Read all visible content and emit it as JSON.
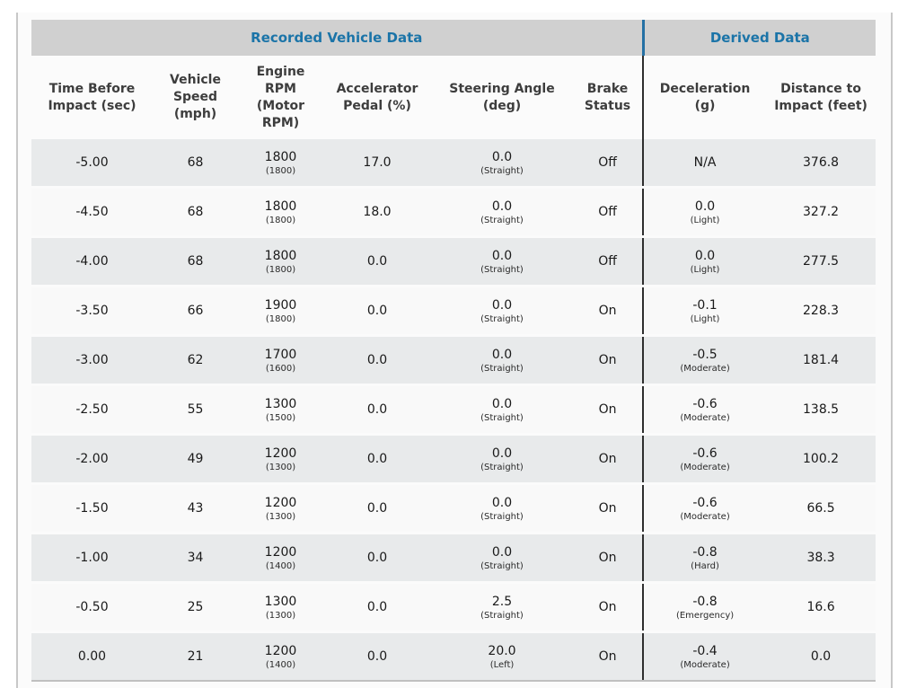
{
  "colors": {
    "accent_blue_text": "#1b74a8",
    "accent_blue_divider": "#2470a4",
    "group_header_bg": "#d0d0d0",
    "row_odd_bg": "#e8eaeb",
    "row_even_bg": "#f9f9f9",
    "dark_divider": "#2e2e2e",
    "panel_border": "#c8c8c8"
  },
  "table": {
    "group_headers": [
      {
        "label": "Recorded Vehicle Data",
        "colspan": "6"
      },
      {
        "label": "Derived Data",
        "colspan": "2"
      }
    ],
    "columns": [
      {
        "key": "time",
        "label": "Time Before Impact (sec)"
      },
      {
        "key": "speed",
        "label": "Vehicle Speed (mph)"
      },
      {
        "key": "rpm",
        "label": "Engine RPM (Motor RPM)",
        "sub_key": "rpm_sub"
      },
      {
        "key": "accel",
        "label": "Accelerator Pedal (%)"
      },
      {
        "key": "steer",
        "label": "Steering Angle (deg)",
        "sub_key": "steer_sub"
      },
      {
        "key": "brake",
        "label": "Brake Status"
      },
      {
        "key": "decel",
        "label": "Deceleration (g)",
        "sub_key": "decel_sub",
        "divider": true
      },
      {
        "key": "dist",
        "label": "Distance to Impact (feet)"
      }
    ],
    "rows": [
      {
        "time": "-5.00",
        "speed": "68",
        "rpm": "1800",
        "rpm_sub": "(1800)",
        "accel": "17.0",
        "steer": "0.0",
        "steer_sub": "(Straight)",
        "brake": "Off",
        "decel": "N/A",
        "decel_sub": "",
        "dist": "376.8"
      },
      {
        "time": "-4.50",
        "speed": "68",
        "rpm": "1800",
        "rpm_sub": "(1800)",
        "accel": "18.0",
        "steer": "0.0",
        "steer_sub": "(Straight)",
        "brake": "Off",
        "decel": "0.0",
        "decel_sub": "(Light)",
        "dist": "327.2"
      },
      {
        "time": "-4.00",
        "speed": "68",
        "rpm": "1800",
        "rpm_sub": "(1800)",
        "accel": "0.0",
        "steer": "0.0",
        "steer_sub": "(Straight)",
        "brake": "Off",
        "decel": "0.0",
        "decel_sub": "(Light)",
        "dist": "277.5"
      },
      {
        "time": "-3.50",
        "speed": "66",
        "rpm": "1900",
        "rpm_sub": "(1800)",
        "accel": "0.0",
        "steer": "0.0",
        "steer_sub": "(Straight)",
        "brake": "On",
        "decel": "-0.1",
        "decel_sub": "(Light)",
        "dist": "228.3"
      },
      {
        "time": "-3.00",
        "speed": "62",
        "rpm": "1700",
        "rpm_sub": "(1600)",
        "accel": "0.0",
        "steer": "0.0",
        "steer_sub": "(Straight)",
        "brake": "On",
        "decel": "-0.5",
        "decel_sub": "(Moderate)",
        "dist": "181.4"
      },
      {
        "time": "-2.50",
        "speed": "55",
        "rpm": "1300",
        "rpm_sub": "(1500)",
        "accel": "0.0",
        "steer": "0.0",
        "steer_sub": "(Straight)",
        "brake": "On",
        "decel": "-0.6",
        "decel_sub": "(Moderate)",
        "dist": "138.5"
      },
      {
        "time": "-2.00",
        "speed": "49",
        "rpm": "1200",
        "rpm_sub": "(1300)",
        "accel": "0.0",
        "steer": "0.0",
        "steer_sub": "(Straight)",
        "brake": "On",
        "decel": "-0.6",
        "decel_sub": "(Moderate)",
        "dist": "100.2"
      },
      {
        "time": "-1.50",
        "speed": "43",
        "rpm": "1200",
        "rpm_sub": "(1300)",
        "accel": "0.0",
        "steer": "0.0",
        "steer_sub": "(Straight)",
        "brake": "On",
        "decel": "-0.6",
        "decel_sub": "(Moderate)",
        "dist": "66.5"
      },
      {
        "time": "-1.00",
        "speed": "34",
        "rpm": "1200",
        "rpm_sub": "(1400)",
        "accel": "0.0",
        "steer": "0.0",
        "steer_sub": "(Straight)",
        "brake": "On",
        "decel": "-0.8",
        "decel_sub": "(Hard)",
        "dist": "38.3"
      },
      {
        "time": "-0.50",
        "speed": "25",
        "rpm": "1300",
        "rpm_sub": "(1300)",
        "accel": "0.0",
        "steer": "2.5",
        "steer_sub": "(Straight)",
        "brake": "On",
        "decel": "-0.8",
        "decel_sub": "(Emergency)",
        "dist": "16.6"
      },
      {
        "time": "0.00",
        "speed": "21",
        "rpm": "1200",
        "rpm_sub": "(1400)",
        "accel": "0.0",
        "steer": "20.0",
        "steer_sub": "(Left)",
        "brake": "On",
        "decel": "-0.4",
        "decel_sub": "(Moderate)",
        "dist": "0.0"
      }
    ]
  }
}
